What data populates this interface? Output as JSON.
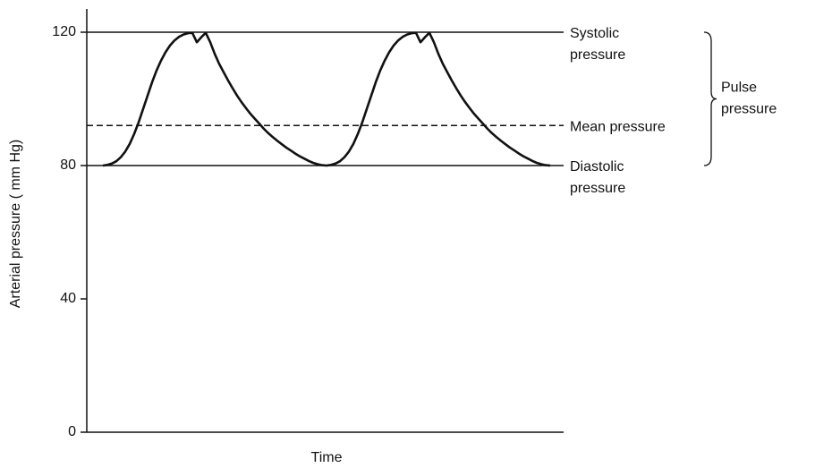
{
  "chart_data": {
    "type": "line",
    "ylabel": "Arterial pressure ( mm Hg)",
    "xlabel": "Time",
    "ylim": [
      0,
      120
    ],
    "yticks": [
      0,
      40,
      80,
      120
    ],
    "categories": [
      null,
      null,
      null,
      null,
      null,
      null,
      null,
      null,
      null,
      null,
      null,
      null,
      null,
      null,
      null,
      null,
      null,
      null,
      null,
      null,
      null,
      null,
      null,
      null,
      null,
      null,
      null,
      null,
      null,
      null,
      null,
      null,
      null,
      null,
      null,
      null,
      null,
      null,
      null,
      null,
      null,
      null,
      null,
      null,
      null,
      null,
      null,
      null,
      null,
      null,
      null,
      null,
      null,
      null,
      null,
      null,
      null,
      null,
      null,
      null,
      null,
      null,
      null,
      null,
      null,
      null,
      null,
      null,
      null,
      null,
      null,
      null,
      null,
      null,
      null,
      null,
      null,
      null,
      null,
      null,
      null,
      null,
      null,
      null,
      null,
      null,
      null,
      null,
      null,
      null,
      null,
      null,
      null,
      null,
      null,
      null,
      null,
      null,
      null,
      null,
      null
    ],
    "series": [
      {
        "color": "#111111",
        "values": [
          80,
          80.2,
          80.6,
          81.3,
          82.5,
          84.2,
          86.5,
          89.5,
          93,
          97,
          101,
          105,
          108.5,
          111.5,
          114,
          116,
          117.5,
          118.6,
          119.3,
          119.7,
          119.8,
          117,
          118.5,
          119.8,
          117,
          113.5,
          110.5,
          108,
          105.5,
          103.2,
          101,
          99,
          97.2,
          95.5,
          94,
          92.5,
          91,
          89.7,
          88.5,
          87.4,
          86.4,
          85.4,
          84.5,
          83.6,
          82.8,
          82.1,
          81.4,
          80.8,
          80.4,
          80.1,
          80,
          80.2,
          80.6,
          81.3,
          82.5,
          84.2,
          86.5,
          89.5,
          93,
          97,
          101,
          105,
          108.5,
          111.5,
          114,
          116,
          117.5,
          118.6,
          119.3,
          119.7,
          119.8,
          117,
          118.5,
          119.8,
          117,
          113.5,
          110.5,
          108,
          105.5,
          103.2,
          101,
          99,
          97.2,
          95.5,
          94,
          92.5,
          91,
          89.7,
          88.5,
          87.4,
          86.4,
          85.4,
          84.5,
          83.6,
          82.8,
          82.1,
          81.4,
          80.8,
          80.4,
          80.1,
          80
        ]
      }
    ],
    "reference_lines": [
      {
        "value": 120,
        "style": "solid",
        "label": [
          "Systolic",
          "pressure"
        ]
      },
      {
        "value": 92,
        "style": "dashed",
        "label": [
          "Mean pressure"
        ]
      },
      {
        "value": 80,
        "style": "solid",
        "label": [
          "Diastolic",
          "pressure"
        ]
      }
    ],
    "brace": {
      "from": 120,
      "to": 80,
      "label": [
        "Pulse",
        "pressure"
      ]
    }
  }
}
